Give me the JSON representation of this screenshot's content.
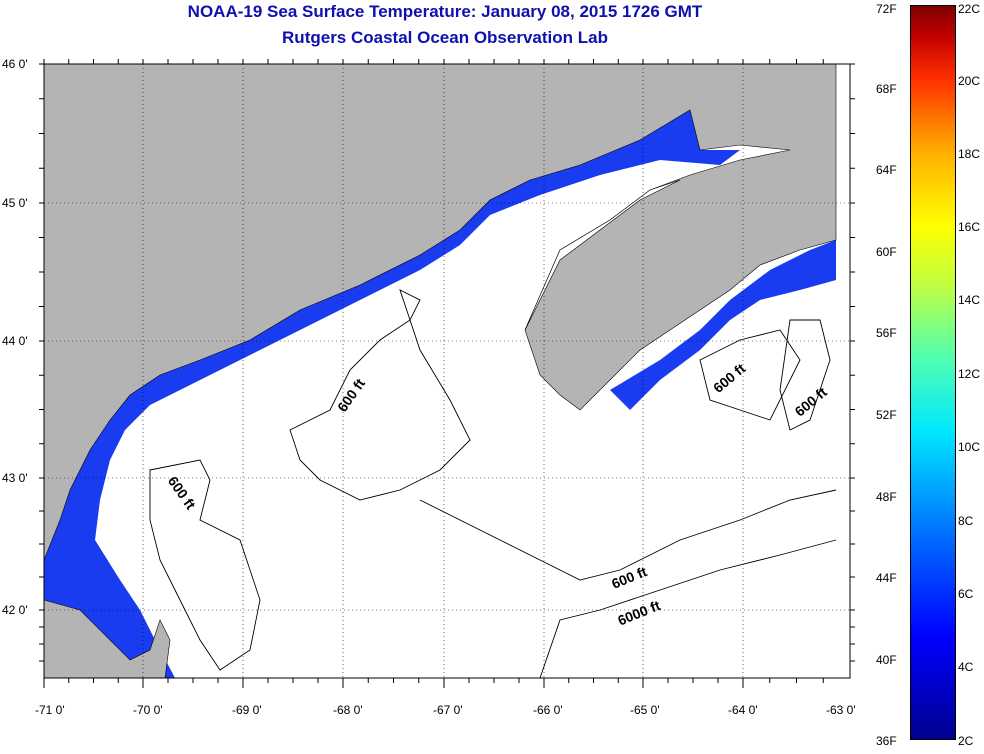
{
  "title": {
    "line1": "NOAA-19 Sea Surface Temperature:  January 08, 2015 1726 GMT",
    "line2": "Rutgers Coastal Ocean Observation Lab"
  },
  "colors": {
    "title": "#1010b0",
    "land": "#b4b4b4",
    "coastal_water": "#1a3cf0",
    "cloud_mask": "#ffffff",
    "contour": "#000000"
  },
  "map": {
    "lat_labels": [
      "46 0'",
      "45 0'",
      "44 0'",
      "43 0'",
      "42 0'"
    ],
    "lon_labels": [
      "-71 0'",
      "-70 0'",
      "-69 0'",
      "-68 0'",
      "-67 0'",
      "-66 0'",
      "-65 0'",
      "-64 0'",
      "-63 0'"
    ],
    "contour_labels": [
      "600 ft",
      "600 ft",
      "600 ft",
      "600 ft",
      "600 ft",
      "6000 ft"
    ]
  },
  "colorbar": {
    "fahrenheit": [
      "72F",
      "68F",
      "64F",
      "60F",
      "56F",
      "52F",
      "48F",
      "44F",
      "40F",
      "36F"
    ],
    "celsius": [
      "22C",
      "20C",
      "18C",
      "16C",
      "14C",
      "12C",
      "10C",
      "8C",
      "6C",
      "4C",
      "2C"
    ]
  }
}
